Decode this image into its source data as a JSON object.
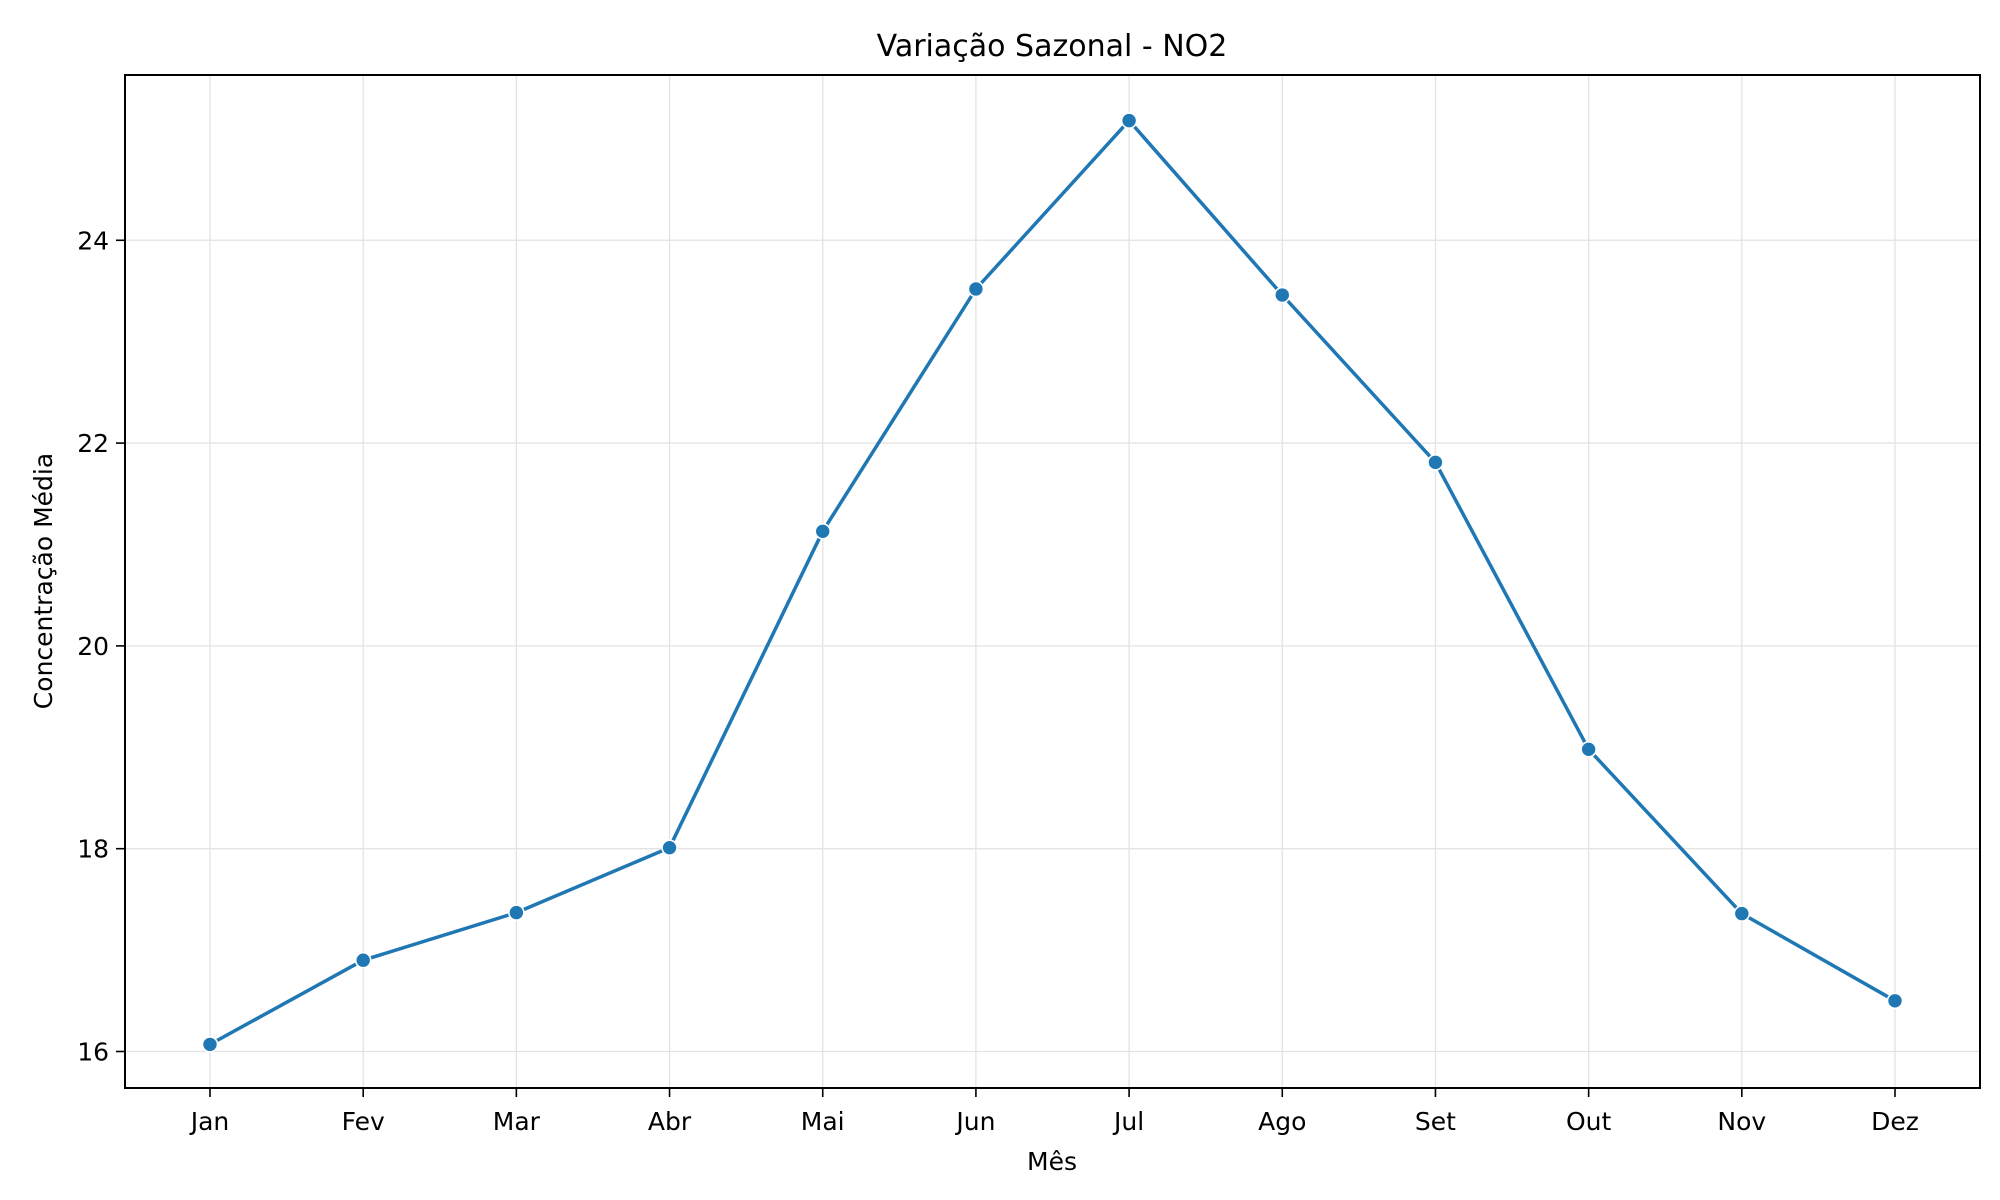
{
  "chart_data": {
    "type": "line",
    "title": "Variação Sazonal - NO2",
    "xlabel": "Mês",
    "ylabel": "Concentração Média",
    "categories": [
      "Jan",
      "Fev",
      "Mar",
      "Abr",
      "Mai",
      "Jun",
      "Jul",
      "Ago",
      "Set",
      "Out",
      "Nov",
      "Dez"
    ],
    "series": [
      {
        "values": [
          16.07,
          16.9,
          17.37,
          18.01,
          21.13,
          23.52,
          25.18,
          23.46,
          21.81,
          18.98,
          17.36,
          16.5
        ]
      }
    ],
    "yticks": [
      16,
      18,
      20,
      22,
      24
    ],
    "ylim": [
      15.64,
      25.63
    ],
    "grid": true,
    "marker": "circle",
    "colors": {
      "series": "#1f77b4"
    }
  }
}
